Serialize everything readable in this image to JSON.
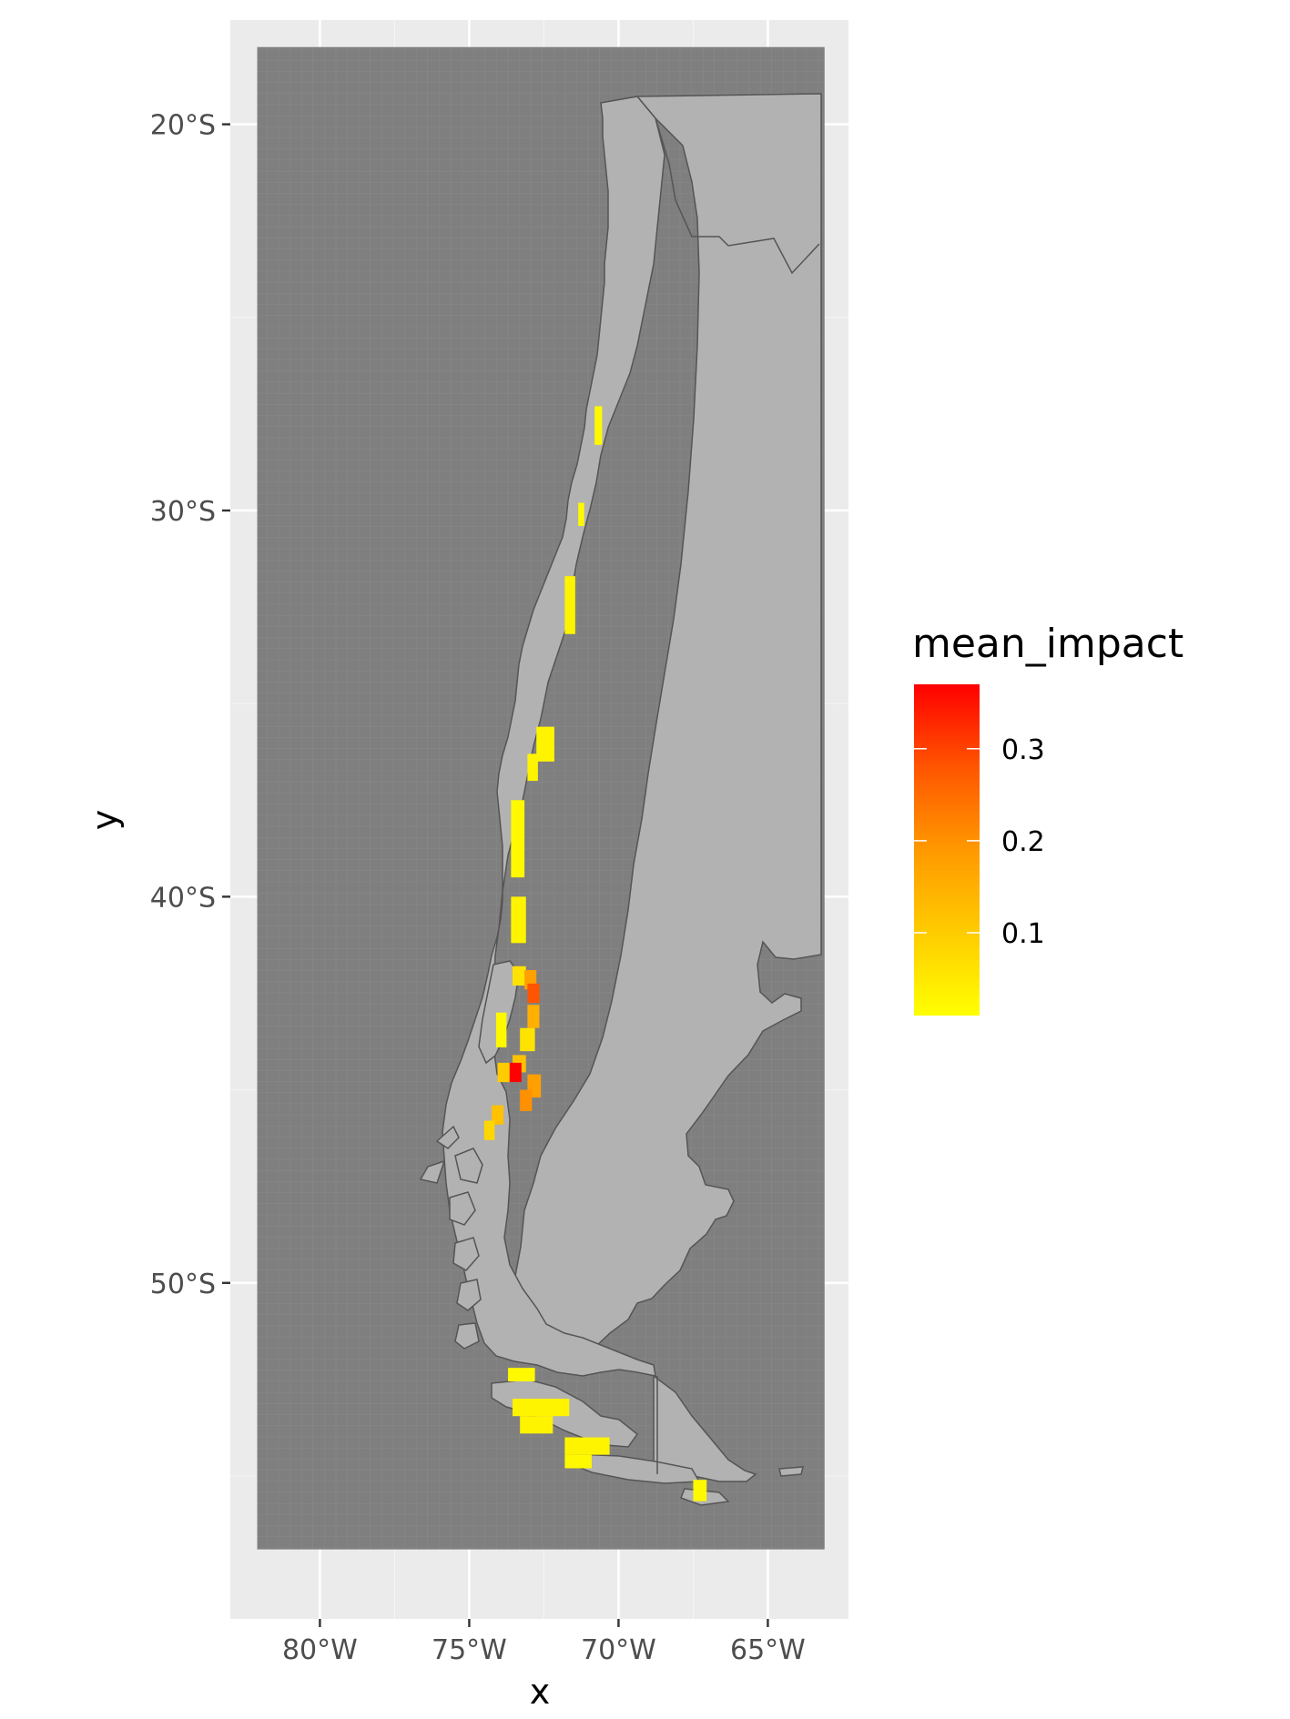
{
  "chart_data": {
    "type": "heatmap",
    "xlabel": "x",
    "ylabel": "y",
    "x_ticks": [
      {
        "value": -80,
        "label": "80°W"
      },
      {
        "value": -75,
        "label": "75°W"
      },
      {
        "value": -70,
        "label": "70°W"
      },
      {
        "value": -65,
        "label": "65°W"
      }
    ],
    "y_ticks": [
      {
        "value": -20,
        "label": "20°S"
      },
      {
        "value": -30,
        "label": "30°S"
      },
      {
        "value": -40,
        "label": "40°S"
      },
      {
        "value": -50,
        "label": "50°S"
      }
    ],
    "xlim": [
      -83,
      -62.3
    ],
    "ylim": [
      -58.7,
      -17.3
    ],
    "grid_extent": {
      "lon": [
        -82.1,
        -63.1
      ],
      "lat": [
        -56.9,
        -18.0
      ]
    },
    "legend": {
      "title": "mean_impact",
      "placement": "right",
      "range": [
        0.01,
        0.37
      ],
      "ticks": [
        {
          "value": 0.1,
          "label": "0.1"
        },
        {
          "value": 0.2,
          "label": "0.2"
        },
        {
          "value": 0.3,
          "label": "0.3"
        }
      ],
      "colors": [
        "#FFFF00",
        "#FFCC00",
        "#FF9900",
        "#FF5500",
        "#FF0000"
      ]
    },
    "impact_cells": [
      {
        "lon": -70.8,
        "lat": -27.3,
        "w": 0.25,
        "h": 1.0,
        "value": 0.02
      },
      {
        "lon": -71.35,
        "lat": -29.8,
        "w": 0.2,
        "h": 0.6,
        "value": 0.02
      },
      {
        "lon": -71.8,
        "lat": -31.7,
        "w": 0.35,
        "h": 1.5,
        "value": 0.03
      },
      {
        "lon": -72.75,
        "lat": -35.6,
        "w": 0.6,
        "h": 0.9,
        "value": 0.03
      },
      {
        "lon": -73.05,
        "lat": -36.3,
        "w": 0.35,
        "h": 0.7,
        "value": 0.03
      },
      {
        "lon": -73.6,
        "lat": -37.5,
        "w": 0.45,
        "h": 2.0,
        "value": 0.02
      },
      {
        "lon": -73.4,
        "lat": -38.8,
        "w": 0.1,
        "h": 0.4,
        "value": 0.02
      },
      {
        "lon": -73.6,
        "lat": -40.0,
        "w": 0.5,
        "h": 1.2,
        "value": 0.03
      },
      {
        "lon": -73.55,
        "lat": -41.8,
        "w": 0.45,
        "h": 0.5,
        "value": 0.06
      },
      {
        "lon": -73.15,
        "lat": -41.9,
        "w": 0.4,
        "h": 0.5,
        "value": 0.18
      },
      {
        "lon": -73.05,
        "lat": -42.25,
        "w": 0.4,
        "h": 0.5,
        "value": 0.28
      },
      {
        "lon": -73.05,
        "lat": -42.8,
        "w": 0.4,
        "h": 0.6,
        "value": 0.15
      },
      {
        "lon": -73.3,
        "lat": -43.4,
        "w": 0.5,
        "h": 0.6,
        "value": 0.06
      },
      {
        "lon": -74.1,
        "lat": -43.0,
        "w": 0.35,
        "h": 0.9,
        "value": 0.02
      },
      {
        "lon": -73.55,
        "lat": -44.1,
        "w": 0.45,
        "h": 0.45,
        "value": 0.12
      },
      {
        "lon": -73.65,
        "lat": -44.3,
        "w": 0.4,
        "h": 0.5,
        "value": 0.37
      },
      {
        "lon": -74.05,
        "lat": -44.3,
        "w": 0.4,
        "h": 0.5,
        "value": 0.1
      },
      {
        "lon": -73.05,
        "lat": -44.6,
        "w": 0.45,
        "h": 0.6,
        "value": 0.18
      },
      {
        "lon": -73.3,
        "lat": -45.0,
        "w": 0.4,
        "h": 0.55,
        "value": 0.2
      },
      {
        "lon": -74.25,
        "lat": -45.4,
        "w": 0.4,
        "h": 0.5,
        "value": 0.12
      },
      {
        "lon": -74.5,
        "lat": -45.8,
        "w": 0.35,
        "h": 0.5,
        "value": 0.08
      },
      {
        "lon": -73.7,
        "lat": -52.2,
        "w": 0.9,
        "h": 0.35,
        "value": 0.02
      },
      {
        "lon": -73.55,
        "lat": -53.0,
        "w": 1.9,
        "h": 0.45,
        "value": 0.03
      },
      {
        "lon": -73.3,
        "lat": -53.45,
        "w": 1.1,
        "h": 0.45,
        "value": 0.03
      },
      {
        "lon": -71.8,
        "lat": -54.0,
        "w": 1.5,
        "h": 0.45,
        "value": 0.03
      },
      {
        "lon": -71.8,
        "lat": -54.45,
        "w": 0.9,
        "h": 0.35,
        "value": 0.02
      },
      {
        "lon": -67.5,
        "lat": -55.1,
        "w": 0.45,
        "h": 0.55,
        "value": 0.02
      }
    ]
  }
}
